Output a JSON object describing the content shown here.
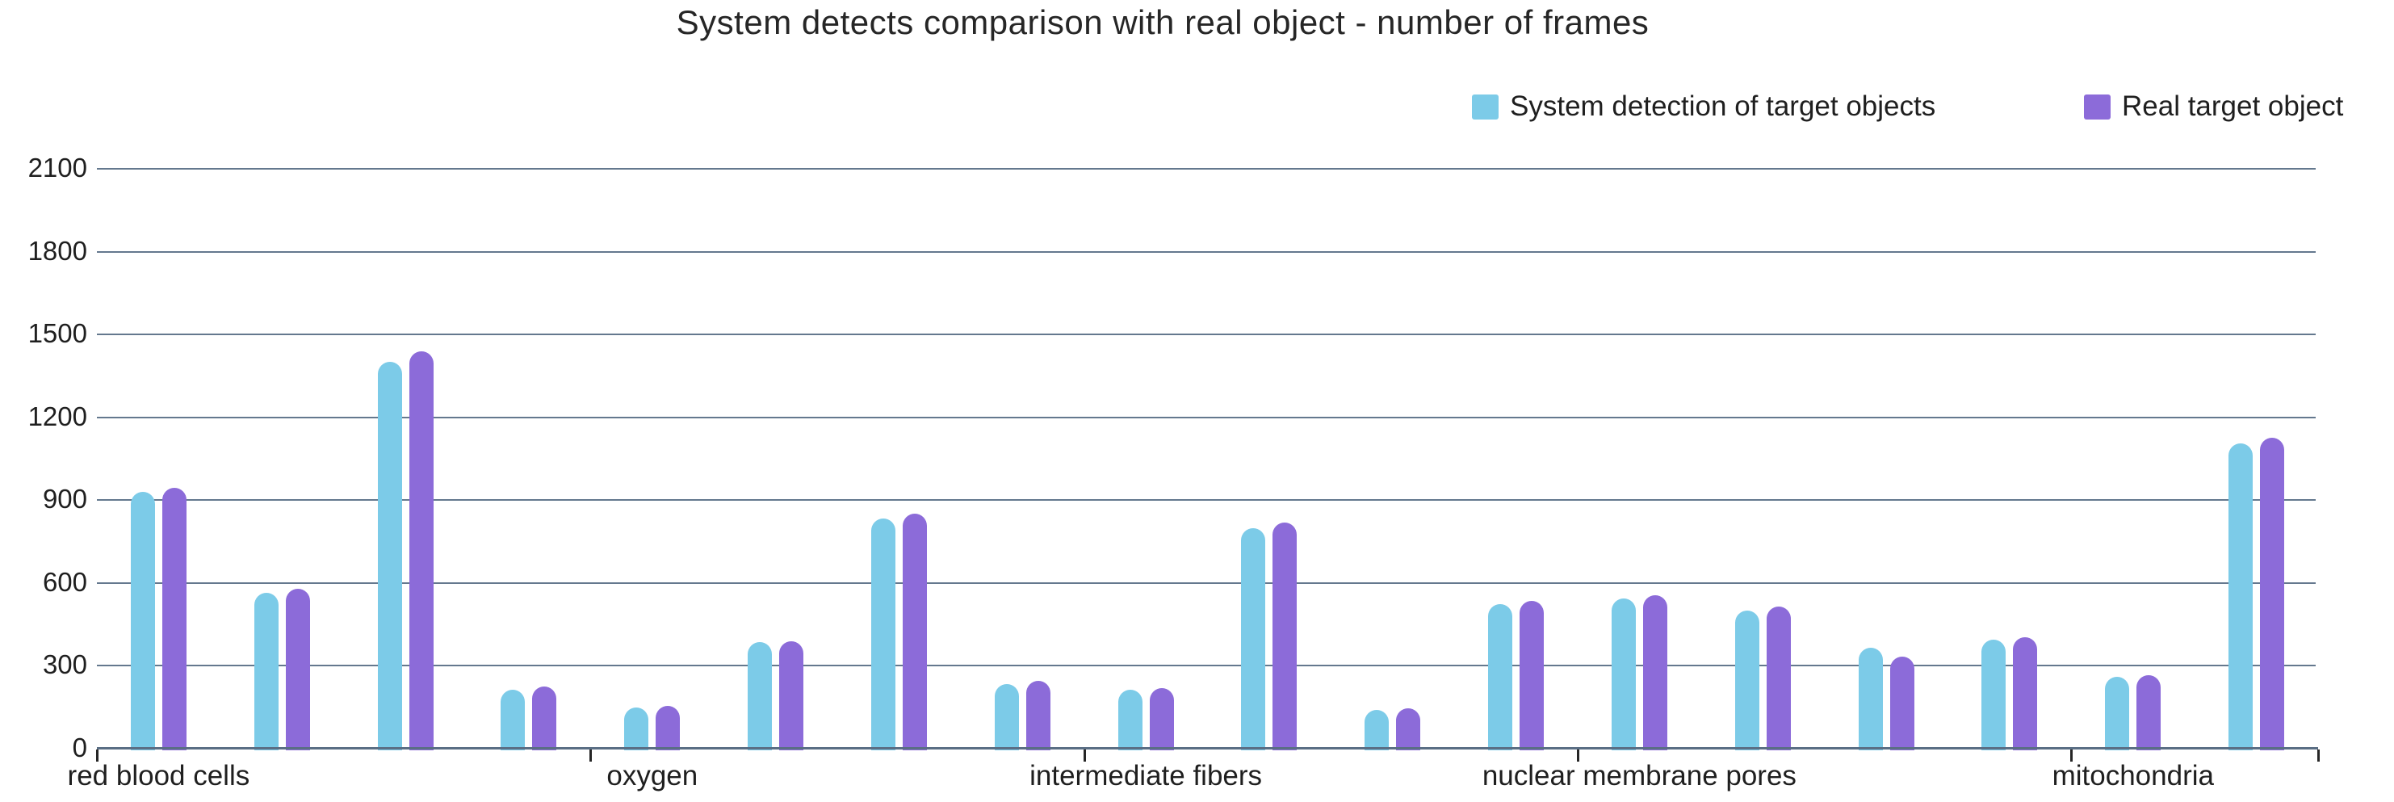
{
  "title": "System detects comparison with real object - number of frames",
  "chart_data": {
    "type": "bar",
    "title": "System detects comparison with real object - number of frames",
    "categories": [
      "red blood cells",
      "oxygen",
      "intermediate fibers",
      "nuclear membrane pores",
      "mitochondria"
    ],
    "bars_per_category": [
      4,
      4,
      4,
      4,
      2
    ],
    "x_tick_boundaries": [
      0,
      4,
      8,
      12,
      16,
      18
    ],
    "series": [
      {
        "name": "System detection of target objects",
        "color": "#7CCBE8",
        "values": [
          930,
          565,
          1400,
          215,
          150,
          385,
          835,
          235,
          215,
          800,
          140,
          525,
          545,
          500,
          365,
          395,
          260,
          1105
        ]
      },
      {
        "name": "Real target object",
        "color": "#8C6BD9",
        "values": [
          945,
          580,
          1440,
          225,
          155,
          390,
          850,
          245,
          220,
          820,
          145,
          535,
          555,
          515,
          335,
          405,
          265,
          1125
        ]
      }
    ],
    "ylim": [
      0,
      2100
    ],
    "yticks": [
      0,
      300,
      600,
      900,
      1200,
      1500,
      1800,
      2100
    ],
    "grid": true,
    "legend_position": "top-right",
    "colors": {
      "grid": "#64788E",
      "axis": "#5A6E84",
      "text": "#262626"
    }
  }
}
